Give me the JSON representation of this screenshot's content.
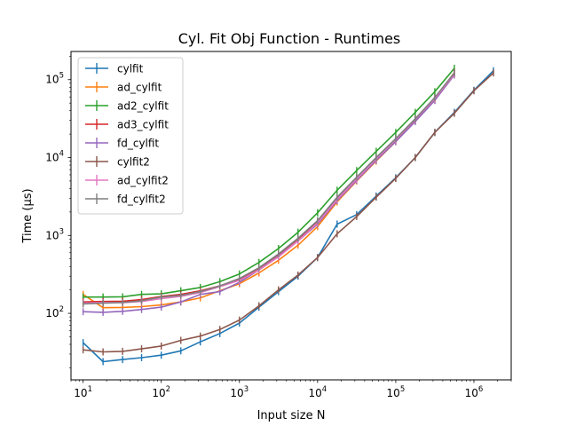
{
  "chart_data": {
    "type": "line",
    "title": "Cyl. Fit Obj Function - Runtimes",
    "xlabel": "Input size N",
    "ylabel": "Time (μs)",
    "xscale": "log",
    "yscale": "log",
    "xlim": [
      7,
      3000000
    ],
    "ylim": [
      14,
      230000
    ],
    "xticks": [
      {
        "value": 10,
        "base": "10",
        "exp": "1"
      },
      {
        "value": 100,
        "base": "10",
        "exp": "2"
      },
      {
        "value": 1000,
        "base": "10",
        "exp": "3"
      },
      {
        "value": 10000,
        "base": "10",
        "exp": "4"
      },
      {
        "value": 100000,
        "base": "10",
        "exp": "5"
      },
      {
        "value": 1000000,
        "base": "10",
        "exp": "6"
      }
    ],
    "yticks": [
      {
        "value": 100,
        "base": "10",
        "exp": "2"
      },
      {
        "value": 1000,
        "base": "10",
        "exp": "3"
      },
      {
        "value": 10000,
        "base": "10",
        "exp": "4"
      },
      {
        "value": 100000,
        "base": "10",
        "exp": "5"
      }
    ],
    "grid": false,
    "legend": "upper left",
    "series": [
      {
        "name": "cylfit",
        "color": "#1f77b4",
        "x": [
          10,
          18,
          32,
          56,
          100,
          178,
          316,
          562,
          1000,
          1778,
          3162,
          5623,
          10000,
          17783,
          31623,
          56234,
          100000,
          177828,
          316228,
          562341,
          1000000,
          1778279
        ],
        "y": [
          42,
          24,
          25.5,
          27,
          29,
          33,
          43,
          55,
          75,
          120,
          190,
          300,
          520,
          1400,
          1850,
          3200,
          5500,
          10000,
          21000,
          38000,
          73000,
          130000
        ]
      },
      {
        "name": "ad_cylfit",
        "color": "#ff7f0e",
        "x": [
          10,
          18,
          32,
          56,
          100,
          178,
          316,
          562,
          1000,
          1778,
          3162,
          5623,
          10000,
          17783,
          31623,
          56234,
          100000,
          177828,
          316228,
          562341
        ],
        "y": [
          175,
          118,
          119,
          122,
          128,
          140,
          158,
          195,
          240,
          330,
          480,
          750,
          1300,
          2700,
          5000,
          9000,
          16000,
          30000,
          55000,
          120000
        ]
      },
      {
        "name": "ad2_cylfit",
        "color": "#2ca02c",
        "x": [
          10,
          18,
          32,
          56,
          100,
          178,
          316,
          562,
          1000,
          1778,
          3162,
          5623,
          10000,
          17783,
          31623,
          56234,
          100000,
          177828,
          316228,
          562341
        ],
        "y": [
          162,
          162,
          163,
          175,
          178,
          195,
          215,
          255,
          320,
          450,
          680,
          1100,
          1950,
          3800,
          6800,
          12000,
          21000,
          38000,
          70000,
          140000
        ]
      },
      {
        "name": "ad3_cylfit",
        "color": "#d62728",
        "x": [
          10,
          18,
          32,
          56,
          100,
          178,
          316,
          562,
          1000,
          1778,
          3162,
          5623,
          10000,
          17783,
          31623,
          56234,
          100000,
          177828,
          316228,
          562341
        ],
        "y": [
          140,
          142,
          143,
          150,
          165,
          175,
          195,
          225,
          275,
          380,
          570,
          900,
          1500,
          3000,
          5500,
          9800,
          17000,
          31000,
          58000,
          123000
        ]
      },
      {
        "name": "fd_cylfit",
        "color": "#9467bd",
        "x": [
          10,
          18,
          32,
          56,
          100,
          178,
          316,
          562,
          1000,
          1778,
          3162,
          5623,
          10000,
          17783,
          31623,
          56234,
          100000,
          177828,
          316228,
          562341
        ],
        "y": [
          105,
          103,
          106,
          112,
          120,
          140,
          175,
          190,
          250,
          360,
          540,
          850,
          1400,
          2800,
          5100,
          9200,
          16000,
          29000,
          54000,
          115000
        ]
      },
      {
        "name": "cylfit2",
        "color": "#8c564b",
        "x": [
          10,
          18,
          32,
          56,
          100,
          178,
          316,
          562,
          1000,
          1778,
          3162,
          5623,
          10000,
          17783,
          31623,
          56234,
          100000,
          177828,
          316228,
          562341,
          1000000,
          1778279
        ],
        "y": [
          34,
          32,
          32.5,
          35,
          38,
          45,
          51,
          62,
          82,
          125,
          200,
          310,
          520,
          1050,
          1750,
          3100,
          5400,
          10000,
          21000,
          37000,
          72000,
          122000
        ]
      },
      {
        "name": "ad_cylfit2",
        "color": "#e377c2",
        "x": [
          10,
          18,
          32,
          56,
          100,
          178,
          316,
          562,
          1000,
          1778,
          3162,
          5623,
          10000,
          17783,
          31623,
          56234,
          100000,
          177828,
          316228,
          562341
        ],
        "y": [
          135,
          138,
          137,
          142,
          155,
          165,
          185,
          220,
          265,
          360,
          530,
          850,
          1450,
          2900,
          5300,
          9600,
          17000,
          31000,
          57000,
          118000
        ]
      },
      {
        "name": "fd_cylfit2",
        "color": "#7f7f7f",
        "x": [
          10,
          18,
          32,
          56,
          100,
          178,
          316,
          562,
          1000,
          1778,
          3162,
          5623,
          10000,
          17783,
          31623,
          56234,
          100000,
          177828,
          316228,
          562341
        ],
        "y": [
          132,
          135,
          138,
          145,
          162,
          170,
          190,
          225,
          280,
          385,
          580,
          920,
          1550,
          3100,
          5600,
          10000,
          17500,
          31500,
          59000,
          122000
        ]
      }
    ]
  }
}
